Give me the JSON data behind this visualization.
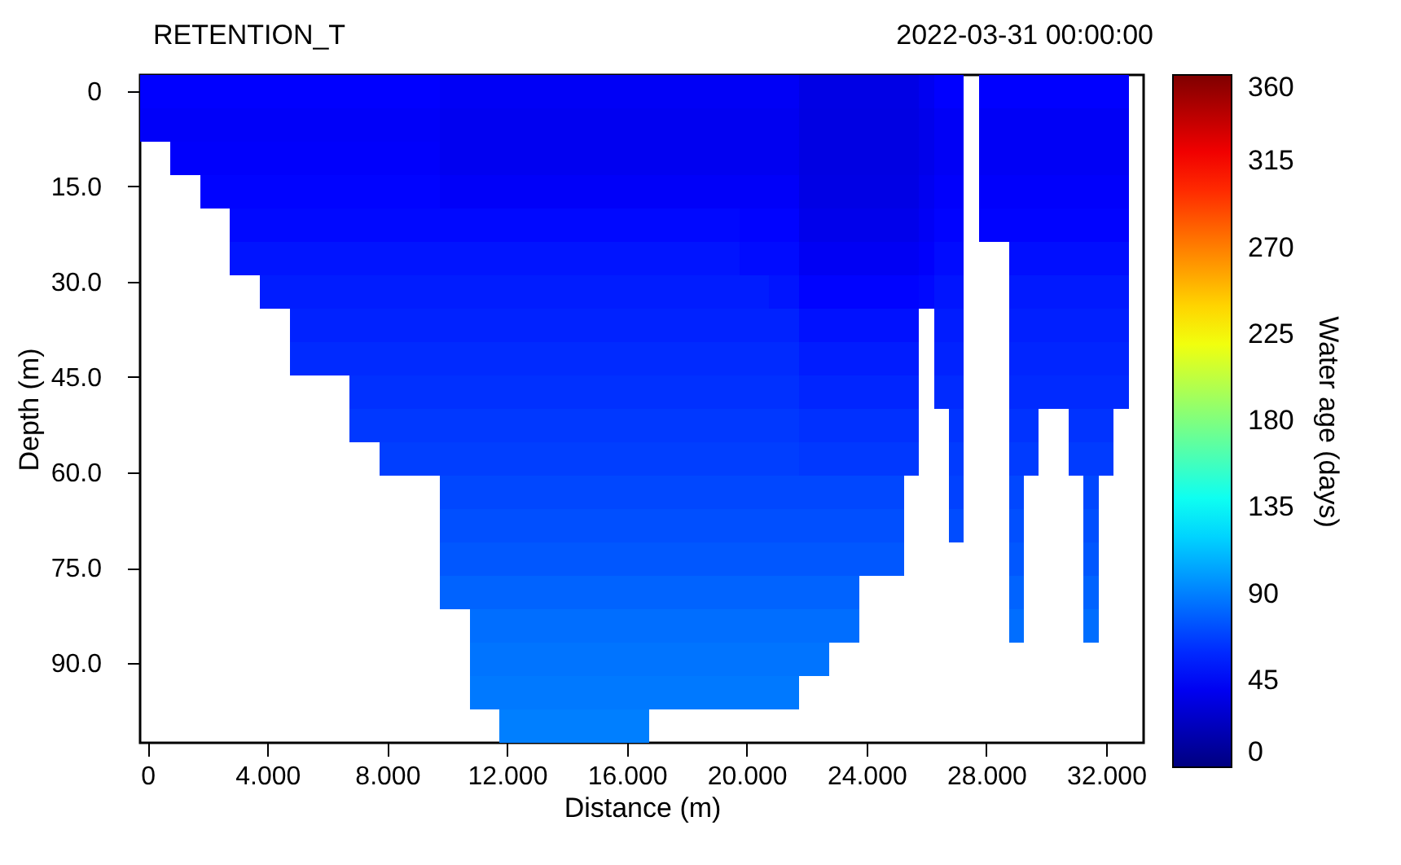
{
  "chart_data": {
    "type": "heatmap",
    "title": "RETENTION_T",
    "subtitle": "2022-03-31 00:00:00",
    "xlabel": "Distance (m)",
    "ylabel": "Depth (m)",
    "clabel": "Water age (days)",
    "cells": [
      [
        45,
        45,
        45,
        45,
        45,
        45,
        45,
        45,
        45,
        45,
        45,
        45,
        45,
        45,
        45,
        45,
        45,
        45,
        45,
        45,
        42,
        42,
        42,
        42,
        42,
        42,
        42,
        42,
        42,
        42,
        42,
        42,
        42,
        42,
        42,
        42,
        42,
        42,
        42,
        42,
        42,
        42,
        42,
        42,
        36,
        36,
        36,
        36,
        36,
        36,
        36,
        36,
        40,
        45,
        45,
        null,
        45,
        45,
        45,
        45,
        45,
        45,
        45,
        45,
        45,
        45,
        null
      ],
      [
        43,
        43,
        43,
        43,
        43,
        43,
        43,
        43,
        43,
        43,
        43,
        43,
        43,
        43,
        43,
        43,
        43,
        43,
        43,
        43,
        40,
        40,
        40,
        40,
        40,
        40,
        40,
        40,
        40,
        40,
        40,
        40,
        40,
        40,
        40,
        40,
        40,
        40,
        40,
        40,
        40,
        40,
        40,
        40,
        35,
        35,
        35,
        35,
        35,
        35,
        35,
        35,
        38,
        42,
        42,
        null,
        42,
        42,
        42,
        42,
        42,
        42,
        42,
        42,
        42,
        42,
        null
      ],
      [
        null,
        null,
        44,
        44,
        44,
        44,
        44,
        44,
        44,
        44,
        44,
        44,
        44,
        44,
        44,
        44,
        44,
        44,
        44,
        44,
        40,
        40,
        40,
        40,
        40,
        40,
        40,
        40,
        40,
        40,
        40,
        40,
        40,
        40,
        40,
        40,
        40,
        40,
        40,
        40,
        40,
        40,
        40,
        40,
        35,
        35,
        35,
        35,
        35,
        35,
        35,
        35,
        38,
        42,
        42,
        null,
        42,
        42,
        42,
        42,
        42,
        42,
        42,
        42,
        42,
        42,
        null
      ],
      [
        null,
        null,
        null,
        null,
        46,
        46,
        46,
        46,
        46,
        46,
        46,
        46,
        46,
        46,
        46,
        46,
        46,
        46,
        46,
        46,
        43,
        43,
        43,
        43,
        43,
        43,
        43,
        43,
        43,
        43,
        43,
        43,
        43,
        43,
        43,
        43,
        43,
        43,
        43,
        43,
        43,
        43,
        43,
        43,
        36,
        36,
        36,
        36,
        36,
        36,
        36,
        36,
        40,
        44,
        44,
        null,
        44,
        44,
        44,
        44,
        44,
        44,
        44,
        44,
        44,
        44,
        null
      ],
      [
        null,
        null,
        null,
        null,
        null,
        null,
        48,
        48,
        48,
        48,
        48,
        48,
        48,
        48,
        48,
        48,
        48,
        48,
        48,
        48,
        48,
        48,
        48,
        48,
        48,
        48,
        48,
        48,
        48,
        48,
        48,
        48,
        48,
        48,
        48,
        48,
        48,
        48,
        48,
        48,
        46,
        46,
        46,
        46,
        38,
        38,
        38,
        38,
        38,
        38,
        38,
        38,
        42,
        46,
        46,
        null,
        46,
        46,
        46,
        46,
        46,
        46,
        46,
        46,
        46,
        46,
        null
      ],
      [
        null,
        null,
        null,
        null,
        null,
        null,
        52,
        52,
        52,
        52,
        52,
        52,
        52,
        52,
        52,
        52,
        52,
        52,
        52,
        52,
        52,
        52,
        52,
        52,
        52,
        52,
        52,
        52,
        52,
        52,
        52,
        52,
        52,
        52,
        52,
        52,
        52,
        52,
        52,
        52,
        49,
        49,
        49,
        49,
        41,
        41,
        41,
        41,
        41,
        41,
        41,
        41,
        44,
        49,
        49,
        null,
        null,
        null,
        50,
        50,
        50,
        50,
        50,
        50,
        50,
        50,
        null
      ],
      [
        null,
        null,
        null,
        null,
        null,
        null,
        null,
        null,
        55,
        55,
        55,
        55,
        55,
        55,
        55,
        55,
        55,
        55,
        55,
        55,
        55,
        55,
        55,
        55,
        55,
        55,
        55,
        55,
        55,
        55,
        55,
        55,
        55,
        55,
        55,
        55,
        55,
        55,
        55,
        55,
        55,
        55,
        52,
        52,
        46,
        46,
        46,
        46,
        46,
        46,
        46,
        46,
        48,
        52,
        52,
        null,
        null,
        null,
        54,
        54,
        54,
        54,
        54,
        54,
        54,
        54,
        null
      ],
      [
        null,
        null,
        null,
        null,
        null,
        null,
        null,
        null,
        null,
        null,
        57,
        57,
        57,
        57,
        57,
        57,
        57,
        57,
        57,
        57,
        57,
        57,
        57,
        57,
        57,
        57,
        57,
        57,
        57,
        57,
        57,
        57,
        57,
        57,
        57,
        57,
        57,
        57,
        57,
        57,
        57,
        57,
        57,
        57,
        51,
        51,
        51,
        51,
        51,
        51,
        51,
        51,
        null,
        55,
        55,
        null,
        null,
        null,
        56,
        56,
        56,
        56,
        56,
        56,
        56,
        56,
        null
      ],
      [
        null,
        null,
        null,
        null,
        null,
        null,
        null,
        null,
        null,
        null,
        60,
        60,
        60,
        60,
        60,
        60,
        60,
        60,
        60,
        60,
        60,
        60,
        60,
        60,
        60,
        60,
        60,
        60,
        60,
        60,
        60,
        60,
        60,
        60,
        60,
        60,
        60,
        60,
        60,
        60,
        60,
        60,
        60,
        60,
        55,
        55,
        55,
        55,
        55,
        55,
        55,
        55,
        null,
        57,
        57,
        null,
        null,
        null,
        58,
        58,
        58,
        58,
        58,
        58,
        58,
        58,
        null
      ],
      [
        null,
        null,
        null,
        null,
        null,
        null,
        null,
        null,
        null,
        null,
        null,
        null,
        null,
        null,
        62,
        62,
        62,
        62,
        62,
        62,
        62,
        62,
        62,
        62,
        62,
        62,
        62,
        62,
        62,
        62,
        62,
        62,
        62,
        62,
        62,
        62,
        62,
        62,
        62,
        62,
        62,
        62,
        62,
        62,
        58,
        58,
        58,
        58,
        58,
        58,
        58,
        58,
        null,
        60,
        60,
        null,
        null,
        null,
        60,
        60,
        60,
        60,
        60,
        60,
        60,
        60,
        null
      ],
      [
        null,
        null,
        null,
        null,
        null,
        null,
        null,
        null,
        null,
        null,
        null,
        null,
        null,
        null,
        65,
        65,
        65,
        65,
        65,
        65,
        65,
        65,
        65,
        65,
        65,
        65,
        65,
        65,
        65,
        65,
        65,
        65,
        65,
        65,
        65,
        65,
        65,
        65,
        65,
        65,
        65,
        65,
        65,
        65,
        62,
        62,
        62,
        62,
        62,
        62,
        62,
        62,
        null,
        null,
        63,
        null,
        null,
        null,
        63,
        63,
        null,
        null,
        63,
        63,
        63,
        null,
        null
      ],
      [
        null,
        null,
        null,
        null,
        null,
        null,
        null,
        null,
        null,
        null,
        null,
        null,
        null,
        null,
        null,
        null,
        67,
        67,
        67,
        67,
        67,
        67,
        67,
        67,
        67,
        67,
        67,
        67,
        67,
        67,
        67,
        67,
        67,
        67,
        67,
        67,
        67,
        67,
        67,
        67,
        67,
        67,
        67,
        67,
        65,
        65,
        65,
        65,
        65,
        65,
        65,
        65,
        null,
        null,
        66,
        null,
        null,
        null,
        66,
        66,
        null,
        null,
        66,
        66,
        66,
        null,
        null
      ],
      [
        null,
        null,
        null,
        null,
        null,
        null,
        null,
        null,
        null,
        null,
        null,
        null,
        null,
        null,
        null,
        null,
        null,
        null,
        null,
        null,
        70,
        70,
        70,
        70,
        70,
        70,
        70,
        70,
        70,
        70,
        70,
        70,
        70,
        70,
        70,
        70,
        70,
        70,
        70,
        70,
        70,
        70,
        70,
        70,
        70,
        70,
        70,
        70,
        70,
        70,
        70,
        null,
        null,
        null,
        68,
        null,
        null,
        null,
        70,
        null,
        null,
        null,
        null,
        70,
        null,
        null,
        null
      ],
      [
        null,
        null,
        null,
        null,
        null,
        null,
        null,
        null,
        null,
        null,
        null,
        null,
        null,
        null,
        null,
        null,
        null,
        null,
        null,
        null,
        73,
        73,
        73,
        73,
        73,
        73,
        73,
        73,
        73,
        73,
        73,
        73,
        73,
        73,
        73,
        73,
        73,
        73,
        73,
        73,
        73,
        73,
        73,
        73,
        73,
        73,
        73,
        73,
        73,
        73,
        73,
        null,
        null,
        null,
        72,
        null,
        null,
        null,
        73,
        null,
        null,
        null,
        null,
        73,
        null,
        null,
        null
      ],
      [
        null,
        null,
        null,
        null,
        null,
        null,
        null,
        null,
        null,
        null,
        null,
        null,
        null,
        null,
        null,
        null,
        null,
        null,
        null,
        null,
        76,
        76,
        76,
        76,
        76,
        76,
        76,
        76,
        76,
        76,
        76,
        76,
        76,
        76,
        76,
        76,
        76,
        76,
        76,
        76,
        76,
        76,
        76,
        76,
        76,
        76,
        76,
        76,
        76,
        76,
        76,
        null,
        null,
        null,
        null,
        null,
        null,
        null,
        76,
        null,
        null,
        null,
        null,
        76,
        null,
        null,
        null
      ],
      [
        null,
        null,
        null,
        null,
        null,
        null,
        null,
        null,
        null,
        null,
        null,
        null,
        null,
        null,
        null,
        null,
        null,
        null,
        null,
        null,
        80,
        80,
        80,
        80,
        80,
        80,
        80,
        80,
        80,
        80,
        80,
        80,
        80,
        80,
        80,
        80,
        80,
        80,
        80,
        80,
        80,
        80,
        80,
        80,
        80,
        80,
        80,
        80,
        null,
        null,
        null,
        null,
        null,
        null,
        null,
        null,
        null,
        null,
        80,
        null,
        null,
        null,
        null,
        80,
        null,
        null,
        null
      ],
      [
        null,
        null,
        null,
        null,
        null,
        null,
        null,
        null,
        null,
        null,
        null,
        null,
        null,
        null,
        null,
        null,
        null,
        null,
        null,
        null,
        null,
        null,
        84,
        84,
        84,
        84,
        84,
        84,
        84,
        84,
        84,
        84,
        84,
        84,
        84,
        84,
        84,
        84,
        84,
        84,
        84,
        84,
        84,
        84,
        84,
        84,
        84,
        84,
        null,
        null,
        null,
        null,
        null,
        null,
        null,
        null,
        null,
        null,
        84,
        null,
        null,
        null,
        null,
        84,
        null,
        null,
        null
      ],
      [
        null,
        null,
        null,
        null,
        null,
        null,
        null,
        null,
        null,
        null,
        null,
        null,
        null,
        null,
        null,
        null,
        null,
        null,
        null,
        null,
        null,
        null,
        86,
        86,
        86,
        86,
        86,
        86,
        86,
        86,
        86,
        86,
        86,
        86,
        86,
        86,
        86,
        86,
        86,
        86,
        86,
        86,
        86,
        86,
        86,
        86,
        null,
        null,
        null,
        null,
        null,
        null,
        null,
        null,
        null,
        null,
        null,
        null,
        null,
        null,
        null,
        null,
        null,
        null,
        null,
        null,
        null
      ],
      [
        null,
        null,
        null,
        null,
        null,
        null,
        null,
        null,
        null,
        null,
        null,
        null,
        null,
        null,
        null,
        null,
        null,
        null,
        null,
        null,
        null,
        null,
        88,
        88,
        88,
        88,
        88,
        88,
        88,
        88,
        88,
        88,
        88,
        88,
        88,
        88,
        88,
        88,
        88,
        88,
        88,
        88,
        88,
        88,
        null,
        null,
        null,
        null,
        null,
        null,
        null,
        null,
        null,
        null,
        null,
        null,
        null,
        null,
        null,
        null,
        null,
        null,
        null,
        null,
        null,
        null,
        null
      ],
      [
        null,
        null,
        null,
        null,
        null,
        null,
        null,
        null,
        null,
        null,
        null,
        null,
        null,
        null,
        null,
        null,
        null,
        null,
        null,
        null,
        null,
        null,
        null,
        null,
        90,
        90,
        90,
        90,
        90,
        90,
        90,
        90,
        90,
        90,
        null,
        null,
        null,
        null,
        null,
        null,
        null,
        null,
        null,
        null,
        null,
        null,
        null,
        null,
        null,
        null,
        null,
        null,
        null,
        null,
        null,
        null,
        null,
        null,
        null,
        null,
        null,
        null,
        null,
        null,
        null,
        null,
        null
      ]
    ],
    "colors": [
      "#00007f",
      "#0000ff",
      "#007fff",
      "#00ffff",
      "#7fff7f",
      "#ffff00",
      "#ff7f00",
      "#ff0000",
      "#7f0000"
    ],
    "clim": [
      0,
      360
    ],
    "cticks": [
      0,
      45,
      90,
      135,
      180,
      225,
      270,
      315,
      360
    ],
    "xlim": [
      -0.25,
      33.25
    ],
    "xticks": [
      0,
      {
        "value": 4,
        "label": "4.000"
      },
      {
        "value": 8,
        "label": "8.000"
      },
      {
        "value": 12,
        "label": "12.000"
      },
      {
        "value": 16,
        "label": "16.000"
      },
      {
        "value": 20,
        "label": "20.000"
      },
      {
        "value": 24,
        "label": "24.000"
      },
      {
        "value": 28,
        "label": "28.000"
      },
      {
        "value": 32,
        "label": "32.000"
      }
    ],
    "ylim": [
      102.5,
      -2.5
    ],
    "yticks": [
      0,
      {
        "value": 15,
        "label": "15.0"
      },
      {
        "value": 30,
        "label": "30.0"
      },
      {
        "value": 45,
        "label": "45.0"
      },
      {
        "value": 60,
        "label": "60.0"
      },
      {
        "value": 75,
        "label": "75.0"
      },
      {
        "value": 90,
        "label": "90.0"
      }
    ],
    "grid": false
  }
}
